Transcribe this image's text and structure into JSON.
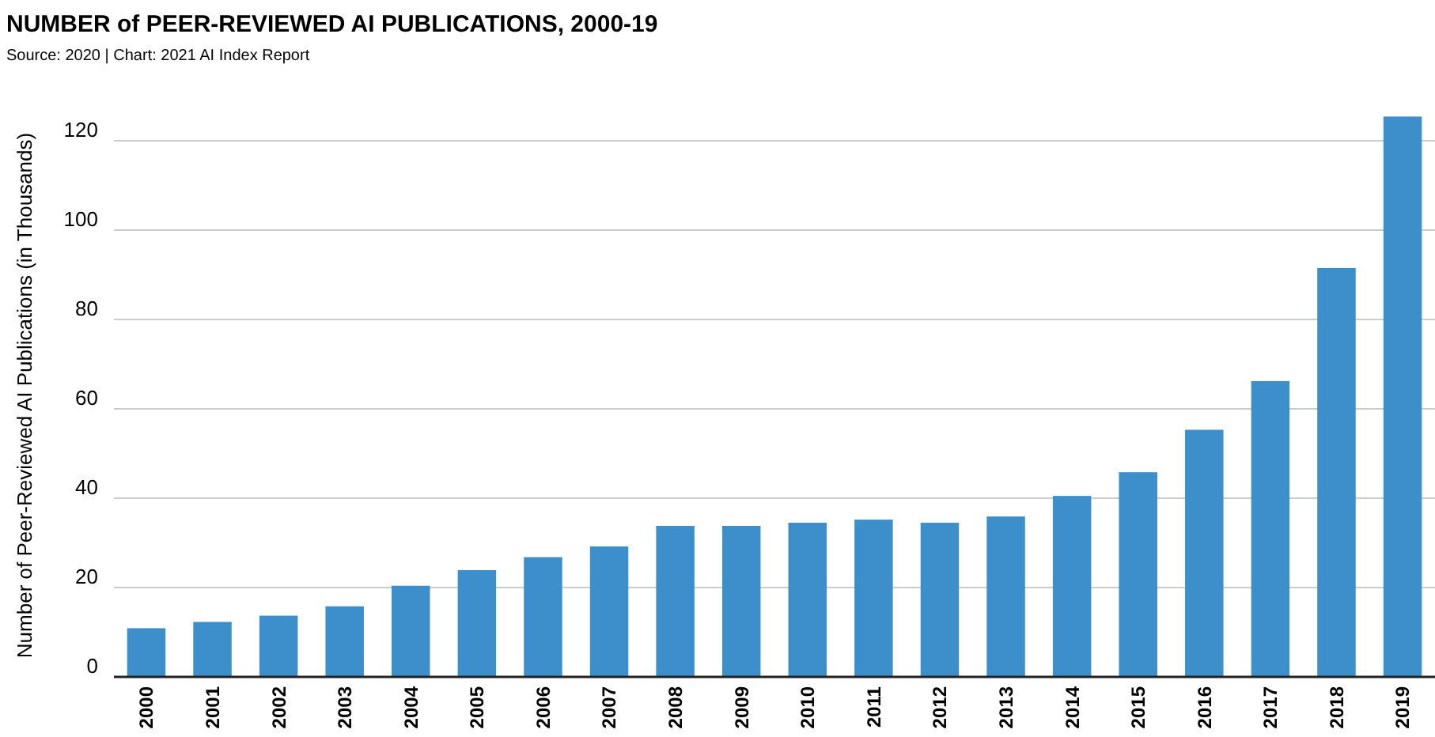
{
  "chart_data": {
    "type": "bar",
    "title": "NUMBER of PEER-REVIEWED AI PUBLICATIONS, 2000-19",
    "subtitle": "Source: 2020 | Chart: 2021 AI Index Report",
    "ylabel": "Number of Peer-Reviewed AI Publications (in Thousands)",
    "categories": [
      "2000",
      "2001",
      "2002",
      "2003",
      "2004",
      "2005",
      "2006",
      "2007",
      "2008",
      "2009",
      "2010",
      "2011",
      "2012",
      "2013",
      "2014",
      "2015",
      "2016",
      "2017",
      "2018",
      "2019"
    ],
    "values": [
      10.9,
      12.3,
      13.7,
      15.8,
      20.4,
      23.9,
      26.8,
      29.2,
      33.8,
      33.8,
      34.5,
      35.2,
      34.5,
      35.9,
      40.5,
      45.8,
      55.3,
      66.2,
      91.5,
      125.4
    ],
    "color": "#3d8fcb",
    "ylim": [
      0,
      126
    ],
    "yticks": [
      0,
      20,
      40,
      60,
      80,
      100,
      120
    ],
    "grid": "y"
  }
}
